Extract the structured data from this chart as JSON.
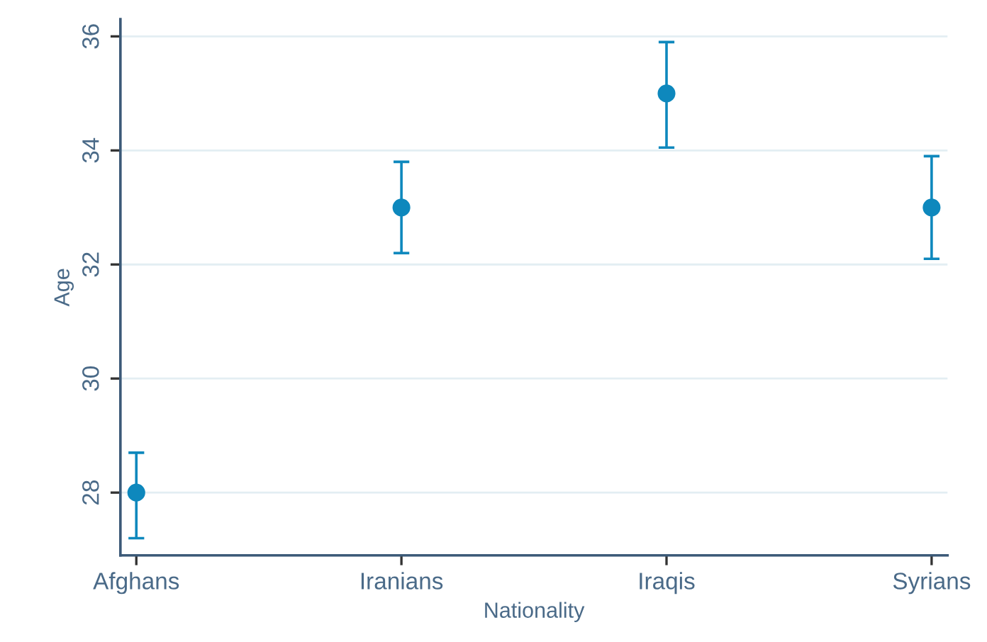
{
  "chart_data": {
    "type": "scatter",
    "xlabel": "Nationality",
    "ylabel": "Age",
    "categories": [
      "Afghans",
      "Iranians",
      "Iraqis",
      "Syrians"
    ],
    "series": [
      {
        "color": "#0e88bd",
        "values": [
          28,
          33,
          35,
          33
        ],
        "errors": [
          [
            27.2,
            28.7
          ],
          [
            32.2,
            33.8
          ],
          [
            34.05,
            35.9
          ],
          [
            32.1,
            33.9
          ]
        ]
      }
    ],
    "ylim": [
      26.9,
      36.3
    ],
    "yticks": [
      28,
      30,
      32,
      34,
      36
    ],
    "grid": "y",
    "marker": "circle"
  }
}
